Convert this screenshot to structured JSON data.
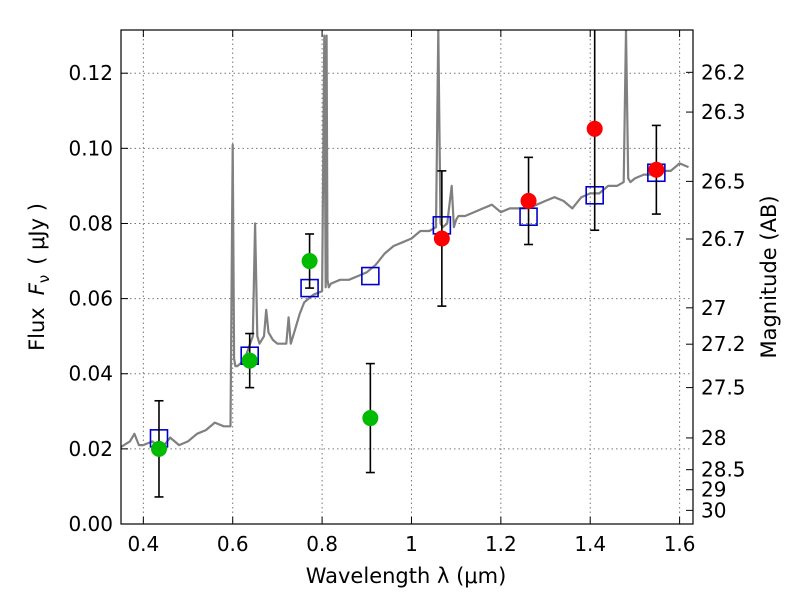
{
  "chart_data": {
    "type": "scatter",
    "xlabel": "Wavelength  λ (μm)",
    "ylabel": "Flux  F_ν  ( μJy )",
    "ylabel_parts": {
      "prefix": "Flux",
      "var": "F",
      "sub": "ν",
      "unit": "( μJy )"
    },
    "y2label": "Magnitude (AB)",
    "xlim": [
      0.35,
      1.63
    ],
    "ylim": [
      0.0,
      0.1315
    ],
    "grid": true,
    "x_ticks": [
      0.4,
      0.6,
      0.8,
      1.0,
      1.2,
      1.4,
      1.6
    ],
    "x_tick_labels": [
      "0.4",
      "0.6",
      "0.8",
      "1",
      "1.2",
      "1.4",
      "1.6"
    ],
    "y_ticks": [
      0.0,
      0.02,
      0.04,
      0.06,
      0.08,
      0.1,
      0.12
    ],
    "y_tick_labels": [
      "0.00",
      "0.02",
      "0.04",
      "0.06",
      "0.08",
      "0.10",
      "0.12"
    ],
    "y2_ticks": [
      26.2,
      26.3,
      26.5,
      26.7,
      27.0,
      27.2,
      27.5,
      28.0,
      28.5,
      29.0,
      30.0
    ],
    "y2_tick_labels": [
      "26.2",
      "26.3",
      "26.5",
      "26.7",
      "27",
      "27.2",
      "27.5",
      "28",
      "28.5",
      "29",
      "30"
    ],
    "series": [
      {
        "kind": "line",
        "color": "#808080",
        "x": [
          0.35,
          0.37,
          0.38,
          0.39,
          0.4,
          0.42,
          0.44,
          0.46,
          0.48,
          0.5,
          0.52,
          0.54,
          0.56,
          0.58,
          0.595,
          0.6,
          0.603,
          0.606,
          0.61,
          0.62,
          0.63,
          0.645,
          0.65,
          0.655,
          0.66,
          0.67,
          0.675,
          0.68,
          0.69,
          0.7,
          0.71,
          0.72,
          0.725,
          0.73,
          0.74,
          0.75,
          0.76,
          0.78,
          0.8,
          0.805,
          0.808,
          0.81,
          0.812,
          0.815,
          0.82,
          0.84,
          0.86,
          0.88,
          0.9,
          0.92,
          0.94,
          0.96,
          0.98,
          1.0,
          1.02,
          1.04,
          1.055,
          1.06,
          1.065,
          1.07,
          1.08,
          1.09,
          1.095,
          1.1,
          1.105,
          1.12,
          1.14,
          1.16,
          1.18,
          1.2,
          1.22,
          1.24,
          1.26,
          1.28,
          1.3,
          1.32,
          1.34,
          1.36,
          1.38,
          1.4,
          1.42,
          1.44,
          1.46,
          1.475,
          1.48,
          1.485,
          1.49,
          1.5,
          1.52,
          1.54,
          1.56,
          1.58,
          1.6,
          1.62
        ],
        "y": [
          0.0205,
          0.022,
          0.024,
          0.021,
          0.021,
          0.022,
          0.02,
          0.023,
          0.021,
          0.022,
          0.024,
          0.025,
          0.027,
          0.026,
          0.026,
          0.101,
          0.044,
          0.042,
          0.042,
          0.043,
          0.045,
          0.05,
          0.08,
          0.05,
          0.048,
          0.05,
          0.057,
          0.051,
          0.049,
          0.048,
          0.048,
          0.048,
          0.055,
          0.048,
          0.052,
          0.056,
          0.059,
          0.061,
          0.062,
          0.13,
          0.063,
          0.13,
          0.065,
          0.063,
          0.064,
          0.065,
          0.065,
          0.066,
          0.067,
          0.069,
          0.072,
          0.074,
          0.075,
          0.076,
          0.078,
          0.078,
          0.079,
          0.1315,
          0.08,
          0.079,
          0.08,
          0.09,
          0.079,
          0.081,
          0.082,
          0.082,
          0.083,
          0.084,
          0.085,
          0.083,
          0.084,
          0.084,
          0.084,
          0.085,
          0.086,
          0.087,
          0.086,
          0.084,
          0.087,
          0.088,
          0.088,
          0.09,
          0.09,
          0.091,
          0.1315,
          0.092,
          0.091,
          0.092,
          0.093,
          0.093,
          0.094,
          0.094,
          0.096,
          0.095
        ]
      },
      {
        "kind": "squares",
        "color": "#0000cc",
        "x": [
          0.435,
          0.638,
          0.772,
          0.908,
          1.068,
          1.262,
          1.41,
          1.548
        ],
        "y": [
          0.0228,
          0.0448,
          0.0628,
          0.066,
          0.0795,
          0.0818,
          0.0875,
          0.0935
        ]
      },
      {
        "kind": "points",
        "color": "#00bb00",
        "x": [
          0.435,
          0.638,
          0.772,
          0.908
        ],
        "y": [
          0.02,
          0.0435,
          0.07,
          0.0282
        ],
        "err": [
          0.0128,
          0.0072,
          0.0072,
          0.0145
        ]
      },
      {
        "kind": "points",
        "color": "#ff0000",
        "x": [
          1.068,
          1.262,
          1.41,
          1.548
        ],
        "y": [
          0.076,
          0.086,
          0.1052,
          0.0943
        ],
        "err": [
          0.018,
          0.0116,
          0.027,
          0.0118
        ]
      }
    ]
  }
}
